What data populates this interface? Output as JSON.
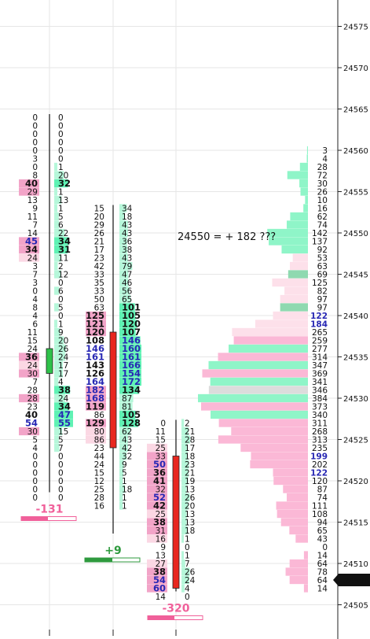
{
  "chart_data": {
    "type": "footprint",
    "ylim": [
      24503.5,
      24578.5
    ],
    "y_ticks": [
      24505,
      24510,
      24515,
      24520,
      24525,
      24530,
      24535,
      24540,
      24545,
      24550,
      24555,
      24560,
      24565,
      24570,
      24575
    ],
    "current_price": 24508,
    "annotation": "24550 = + 182 ???",
    "colors": {
      "bid_hi": "#f2a4c8",
      "bid_lo": "#fbd8e4",
      "ask_hi": "#5ff2b4",
      "ask_lo": "#b6f7da",
      "up": "#2ec24a",
      "down": "#e8271f",
      "pos_text": "#2e9a3e",
      "neg_text": "#f0609a",
      "price_marker": "#111111"
    },
    "bars": [
      {
        "top": 24564,
        "bottom": 24519,
        "open": 24533,
        "close": 24536,
        "direction": "up",
        "bids": [
          "0",
          "0",
          "0",
          "0",
          "0",
          "3",
          "0",
          "8",
          "40",
          "29",
          "13",
          "9",
          "11",
          "7",
          "14",
          "45",
          "34",
          "24",
          "3",
          "7",
          "3",
          "0",
          "4",
          "8",
          "4",
          "6",
          "11",
          "15",
          "24",
          "36",
          "24",
          "30",
          "7",
          "28",
          "28",
          "23",
          "40",
          "54",
          "30",
          "5",
          "4",
          "0",
          "0",
          "0",
          "0",
          "0",
          "0"
        ],
        "asks": [
          "0",
          "0",
          "0",
          "0",
          "0",
          "0",
          "1",
          "20",
          "32",
          "1",
          "13",
          "1",
          "5",
          "6",
          "22",
          "34",
          "31",
          "11",
          "2",
          "12",
          "0",
          "6",
          "0",
          "5",
          "0",
          "1",
          "9",
          "20",
          "26",
          "24",
          "17",
          "17",
          "4",
          "38",
          "24",
          "34",
          "47",
          "55",
          "15",
          "5",
          "7",
          "0",
          "0",
          "0",
          "0",
          "0",
          "0"
        ],
        "delta": "-131",
        "delta_sign": "neg"
      },
      {
        "top": 24553,
        "bottom": 24514,
        "open": 24538,
        "close": 24524,
        "direction": "down",
        "bids": [
          "15",
          "20",
          "29",
          "26",
          "21",
          "17",
          "23",
          "42",
          "33",
          "35",
          "33",
          "50",
          "63",
          "125",
          "121",
          "120",
          "108",
          "146",
          "161",
          "143",
          "126",
          "164",
          "182",
          "168",
          "119",
          "86",
          "129",
          "80",
          "86",
          "23",
          "44",
          "24",
          "15",
          "12",
          "25",
          "28",
          "16"
        ],
        "asks": [
          "34",
          "18",
          "43",
          "43",
          "36",
          "38",
          "43",
          "79",
          "47",
          "46",
          "56",
          "65",
          "101",
          "105",
          "120",
          "107",
          "146",
          "160",
          "161",
          "166",
          "154",
          "172",
          "134",
          "87",
          "81",
          "105",
          "128",
          "62",
          "43",
          "42",
          "32",
          "9",
          "5",
          "1",
          "18",
          "1",
          "1"
        ],
        "delta": "+9",
        "delta_sign": "pos"
      },
      {
        "top": 24527,
        "bottom": 24507,
        "open": 24523,
        "close": 24507,
        "direction": "down",
        "bids": [
          "0",
          "11",
          "15",
          "25",
          "33",
          "50",
          "36",
          "41",
          "32",
          "52",
          "42",
          "25",
          "38",
          "31",
          "16",
          "9",
          "13",
          "27",
          "38",
          "54",
          "60",
          "14"
        ],
        "asks": [
          "2",
          "21",
          "28",
          "17",
          "18",
          "23",
          "21",
          "19",
          "13",
          "26",
          "20",
          "13",
          "13",
          "18",
          "1",
          "0",
          "1",
          "7",
          "26",
          "24",
          "4",
          "0"
        ],
        "delta": "-320",
        "delta_sign": "neg"
      }
    ],
    "volume_profile": {
      "top": 24560,
      "values": [
        "3",
        "4",
        "28",
        "72",
        "30",
        "26",
        "10",
        "16",
        "62",
        "74",
        "142",
        "137",
        "92",
        "53",
        "63",
        "69",
        "125",
        "82",
        "97",
        "97",
        "122",
        "184",
        "265",
        "259",
        "277",
        "314",
        "347",
        "369",
        "341",
        "346",
        "384",
        "373",
        "340",
        "311",
        "268",
        "313",
        "235",
        "199",
        "202",
        "122",
        "120",
        "87",
        "74",
        "111",
        "108",
        "94",
        "65",
        "43",
        "0",
        "14",
        "64",
        "78",
        "64",
        "14"
      ]
    },
    "volume_profile_highlight": [
      24545,
      24541
    ],
    "volume_profile_poc": 24531
  }
}
